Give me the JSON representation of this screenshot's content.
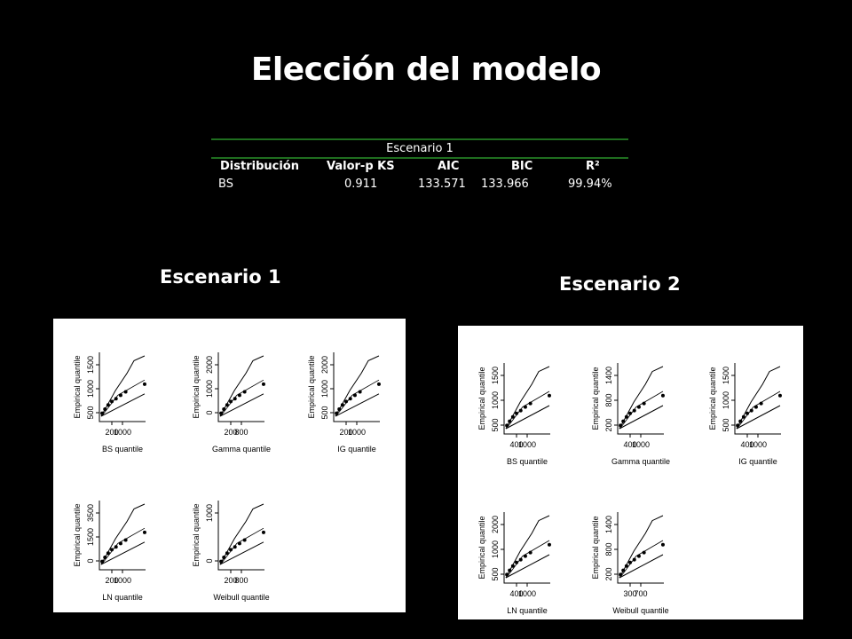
{
  "slide": {
    "title": "Elección del modelo"
  },
  "table": {
    "group_header": "Escenario 1",
    "columns": [
      "Distribución",
      "Valor-p KS",
      "AIC",
      "BIC",
      "R²"
    ],
    "rows": [
      [
        "BS",
        "0.911",
        "133.571",
        "133.966",
        "99.94%"
      ]
    ]
  },
  "scenario1": {
    "label": "Escenario 1",
    "ylabel": "Empirical quantile",
    "plots": [
      {
        "xlabel": "BS quantile",
        "yticks": [
          "500",
          "1000",
          "1500"
        ],
        "xticks": [
          "200",
          "1000"
        ]
      },
      {
        "xlabel": "Gamma quantile",
        "yticks": [
          "0",
          "1000",
          "2000"
        ],
        "xticks": [
          "200",
          "800"
        ]
      },
      {
        "xlabel": "IG quantile",
        "yticks": [
          "500",
          "1000",
          "2000"
        ],
        "xticks": [
          "200",
          "1000"
        ]
      },
      {
        "xlabel": "LN quantile",
        "yticks": [
          "0",
          "1500",
          "3500"
        ],
        "xticks": [
          "200",
          "1000"
        ]
      },
      {
        "xlabel": "Weibull quantile",
        "yticks": [
          "0",
          "1000"
        ],
        "xticks": [
          "200",
          "800"
        ]
      }
    ]
  },
  "scenario2": {
    "label": "Escenario 2",
    "ylabel": "Empirical quantile",
    "plots": [
      {
        "xlabel": "BS quantile",
        "yticks": [
          "500",
          "1000",
          "1500"
        ],
        "xticks": [
          "400",
          "1000"
        ]
      },
      {
        "xlabel": "Gamma quantile",
        "yticks": [
          "200",
          "800",
          "1400"
        ],
        "xticks": [
          "400",
          "1000"
        ]
      },
      {
        "xlabel": "IG quantile",
        "yticks": [
          "500",
          "1000",
          "1500"
        ],
        "xticks": [
          "400",
          "1000"
        ]
      },
      {
        "xlabel": "LN quantile",
        "yticks": [
          "500",
          "1000",
          "2000"
        ],
        "xticks": [
          "400",
          "1000"
        ]
      },
      {
        "xlabel": "Weibull quantile",
        "yticks": [
          "200",
          "800",
          "1400"
        ],
        "xticks": [
          "300",
          "700"
        ]
      }
    ]
  }
}
